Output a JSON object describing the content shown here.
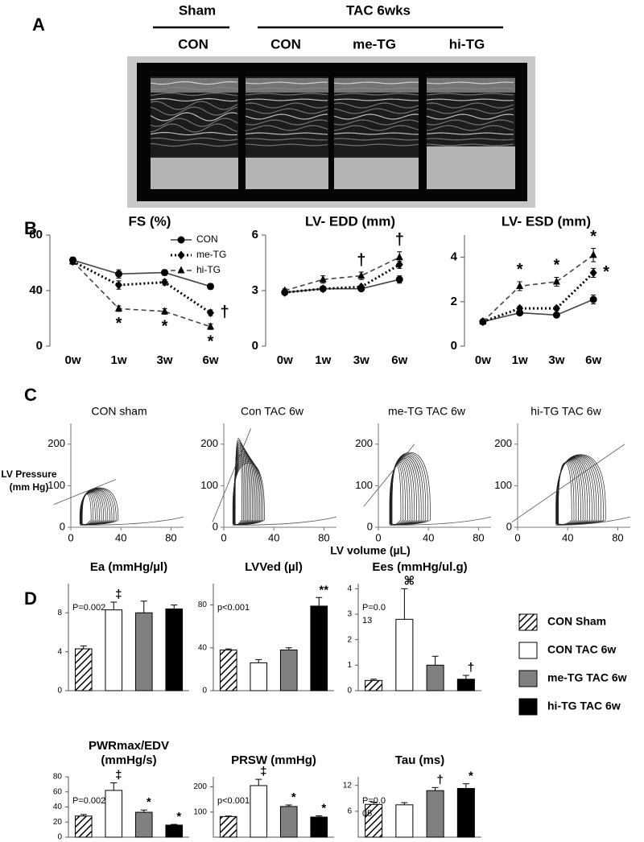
{
  "panel_labels": [
    "A",
    "B",
    "C",
    "D"
  ],
  "echo": {
    "groups": [
      {
        "label": "Sham",
        "columns": [
          "CON"
        ]
      },
      {
        "label": "TAC 6wks",
        "columns": [
          "CON",
          "me-TG",
          "hi-TG"
        ]
      }
    ]
  },
  "pv_axis_labels": {
    "y": [
      "LV Pressure",
      "(mm Hg)"
    ],
    "x": "LV volume (µL)"
  },
  "bar_legend": [
    {
      "name": "CON Sham",
      "fill": "hatch"
    },
    {
      "name": "CON TAC 6w",
      "fill": "#ffffff"
    },
    {
      "name": "me-TG TAC 6w",
      "fill": "#808080"
    },
    {
      "name": "hi-TG TAC 6w",
      "fill": "#000000"
    }
  ],
  "chart_data": [
    {
      "type": "line",
      "title": "FS (%)",
      "categories": [
        "0w",
        "1w",
        "3w",
        "6w"
      ],
      "ylim": [
        0,
        80
      ],
      "yticks": [
        0,
        40,
        80
      ],
      "legend": "upper right",
      "series": [
        {
          "name": "CON",
          "color": "#444444",
          "dash": "solid",
          "marker": "circle",
          "values": [
            62,
            52,
            53,
            43
          ],
          "errors": [
            2,
            3,
            2,
            2
          ]
        },
        {
          "name": "me-TG",
          "color": "#000000",
          "dash": "dotted",
          "marker": "diamond",
          "values": [
            61,
            44,
            46,
            24
          ],
          "errors": [
            2,
            3,
            2,
            2
          ]
        },
        {
          "name": "hi-TG",
          "color": "#444444",
          "dash": "dashed",
          "marker": "triangle",
          "values": [
            61,
            27,
            25,
            14
          ],
          "errors": [
            2,
            2,
            2,
            2
          ]
        }
      ],
      "annotations": [
        {
          "text": "*",
          "category": "1w",
          "series": "hi-TG",
          "anchor": "below"
        },
        {
          "text": "*",
          "category": "3w",
          "series": "hi-TG",
          "anchor": "below"
        },
        {
          "text": "*",
          "category": "6w",
          "series": "hi-TG",
          "anchor": "below"
        },
        {
          "text": "†",
          "category": "6w",
          "series": "me-TG",
          "anchor": "right"
        }
      ]
    },
    {
      "type": "line",
      "title": "LV- EDD (mm)",
      "categories": [
        "0w",
        "1w",
        "3w",
        "6w"
      ],
      "ylim": [
        0,
        6
      ],
      "yticks": [
        0,
        3,
        6
      ],
      "series": [
        {
          "name": "CON",
          "color": "#444444",
          "dash": "solid",
          "marker": "circle",
          "values": [
            2.9,
            3.1,
            3.1,
            3.6
          ],
          "errors": [
            0.1,
            0.1,
            0.1,
            0.2
          ]
        },
        {
          "name": "me-TG",
          "color": "#000000",
          "dash": "dotted",
          "marker": "diamond",
          "values": [
            2.9,
            3.1,
            3.2,
            4.4
          ],
          "errors": [
            0.1,
            0.1,
            0.1,
            0.2
          ]
        },
        {
          "name": "hi-TG",
          "color": "#444444",
          "dash": "dashed",
          "marker": "triangle",
          "values": [
            3.0,
            3.6,
            3.8,
            4.8
          ],
          "errors": [
            0.1,
            0.2,
            0.2,
            0.3
          ]
        }
      ],
      "annotations": [
        {
          "text": "†",
          "category": "3w",
          "series": "hi-TG",
          "anchor": "above"
        },
        {
          "text": "†",
          "category": "6w",
          "series": "hi-TG",
          "anchor": "above"
        }
      ]
    },
    {
      "type": "line",
      "title": "LV- ESD (mm)",
      "categories": [
        "0w",
        "1w",
        "3w",
        "6w"
      ],
      "ylim": [
        0,
        5
      ],
      "yticks": [
        0,
        2,
        4
      ],
      "series": [
        {
          "name": "CON",
          "color": "#444444",
          "dash": "solid",
          "marker": "circle",
          "values": [
            1.1,
            1.5,
            1.4,
            2.1
          ],
          "errors": [
            0.05,
            0.1,
            0.1,
            0.2
          ]
        },
        {
          "name": "me-TG",
          "color": "#000000",
          "dash": "dotted",
          "marker": "diamond",
          "values": [
            1.1,
            1.7,
            1.7,
            3.3
          ],
          "errors": [
            0.05,
            0.1,
            0.1,
            0.2
          ]
        },
        {
          "name": "hi-TG",
          "color": "#444444",
          "dash": "dashed",
          "marker": "triangle",
          "values": [
            1.1,
            2.7,
            2.9,
            4.1
          ],
          "errors": [
            0.05,
            0.2,
            0.2,
            0.3
          ]
        }
      ],
      "annotations": [
        {
          "text": "*",
          "category": "1w",
          "series": "hi-TG",
          "anchor": "above"
        },
        {
          "text": "*",
          "category": "3w",
          "series": "hi-TG",
          "anchor": "above"
        },
        {
          "text": "*",
          "category": "6w",
          "series": "hi-TG",
          "anchor": "above"
        },
        {
          "text": "*",
          "category": "6w",
          "series": "me-TG",
          "anchor": "right"
        }
      ]
    },
    {
      "type": "pv-loop",
      "title": "CON sham",
      "xlim": [
        0,
        90
      ],
      "xticks": [
        0,
        40,
        80
      ],
      "ylim": [
        0,
        250
      ],
      "yticks": [
        0,
        100,
        200
      ]
    },
    {
      "type": "pv-loop",
      "title": "Con TAC 6w",
      "xlim": [
        0,
        90
      ],
      "xticks": [
        0,
        40,
        80
      ],
      "ylim": [
        0,
        250
      ],
      "yticks": [
        0,
        100,
        200
      ]
    },
    {
      "type": "pv-loop",
      "title": "me-TG TAC 6w",
      "xlim": [
        0,
        90
      ],
      "xticks": [
        0,
        40,
        80
      ],
      "ylim": [
        0,
        250
      ],
      "yticks": [
        0,
        100,
        200
      ]
    },
    {
      "type": "pv-loop",
      "title": "hi-TG TAC 6w",
      "xlim": [
        0,
        90
      ],
      "xticks": [
        0,
        40,
        80
      ],
      "ylim": [
        0,
        250
      ],
      "yticks": [
        0,
        100,
        200
      ]
    },
    {
      "type": "bar",
      "title": "Ea (mmHg/µl)",
      "ylim": [
        0,
        11
      ],
      "yticks": [
        0,
        4,
        8
      ],
      "values": [
        4.3,
        8.3,
        8.0,
        8.4
      ],
      "errors": [
        0.3,
        0.8,
        1.2,
        0.4
      ],
      "symbols": [
        null,
        "‡",
        null,
        null
      ],
      "note": "P=0.002"
    },
    {
      "type": "bar",
      "title": "LVVed (µl)",
      "ylim": [
        0,
        100
      ],
      "yticks": [
        0,
        40,
        80
      ],
      "values": [
        38,
        26,
        38,
        79
      ],
      "errors": [
        1,
        3,
        2,
        8
      ],
      "symbols": [
        null,
        null,
        null,
        "**"
      ],
      "note": "p<0.001"
    },
    {
      "type": "bar",
      "title": "Ees (mmHg/ul.g)",
      "ylim": [
        0,
        4.2
      ],
      "yticks": [
        0,
        1,
        2,
        3,
        4
      ],
      "values": [
        0.4,
        2.8,
        1.0,
        0.45
      ],
      "errors": [
        0.05,
        1.2,
        0.35,
        0.15
      ],
      "symbols": [
        null,
        "⌘",
        null,
        "†"
      ],
      "note": [
        "P=0.0",
        "13"
      ]
    },
    {
      "type": "bar",
      "title": [
        "PWRmax/EDV",
        "(mmHg/s)"
      ],
      "ylim": [
        0,
        80
      ],
      "yticks": [
        0,
        20,
        40,
        60,
        80
      ],
      "values": [
        28,
        62,
        33,
        16
      ],
      "errors": [
        2,
        10,
        3,
        1
      ],
      "symbols": [
        null,
        "‡",
        "*",
        "*"
      ],
      "note": "P=0.002"
    },
    {
      "type": "bar",
      "title": "PRSW (mmHg)",
      "ylim": [
        0,
        240
      ],
      "yticks": [
        100,
        200
      ],
      "values": [
        82,
        205,
        122,
        80
      ],
      "errors": [
        2,
        25,
        6,
        5
      ],
      "symbols": [
        null,
        "‡",
        "*",
        "*"
      ],
      "note": "p<0.001"
    },
    {
      "type": "bar",
      "title": "Tau (ms)",
      "ylim": [
        0,
        14
      ],
      "yticks": [
        6,
        12
      ],
      "values": [
        7.6,
        7.5,
        10.8,
        11.3
      ],
      "errors": [
        0.5,
        0.5,
        0.7,
        1.1
      ],
      "symbols": [
        null,
        null,
        "†",
        "*"
      ],
      "note": [
        "P=0.0",
        "05"
      ]
    }
  ]
}
